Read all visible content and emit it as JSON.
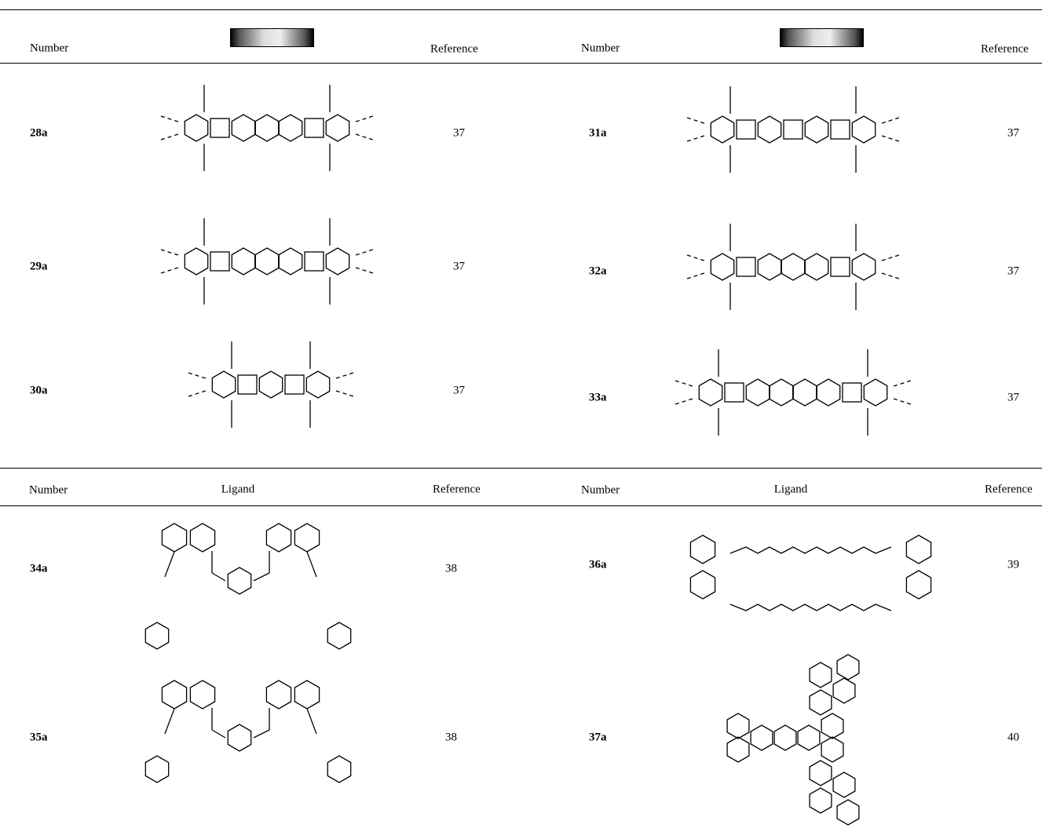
{
  "sections": [
    {
      "left": {
        "header": {
          "number": "Number",
          "reference": "Reference"
        },
        "rows": [
          {
            "number": "28a",
            "reference": "37"
          },
          {
            "number": "29a",
            "reference": "37"
          },
          {
            "number": "30a",
            "reference": "37"
          }
        ]
      },
      "right": {
        "header": {
          "number": "Number",
          "reference": "Reference"
        },
        "rows": [
          {
            "number": "31a",
            "reference": "37"
          },
          {
            "number": "32a",
            "reference": "37"
          },
          {
            "number": "33a",
            "reference": "37"
          }
        ]
      }
    },
    {
      "left": {
        "header": {
          "number": "Number",
          "ligand": "Ligand",
          "reference": "Reference"
        },
        "rows": [
          {
            "number": "34a",
            "reference": "38"
          },
          {
            "number": "35a",
            "reference": "38"
          }
        ]
      },
      "right": {
        "header": {
          "number": "Number",
          "ligand": "Ligand",
          "reference": "Reference"
        },
        "rows": [
          {
            "number": "36a",
            "reference": "39"
          },
          {
            "number": "37a",
            "reference": "40"
          }
        ]
      }
    }
  ]
}
